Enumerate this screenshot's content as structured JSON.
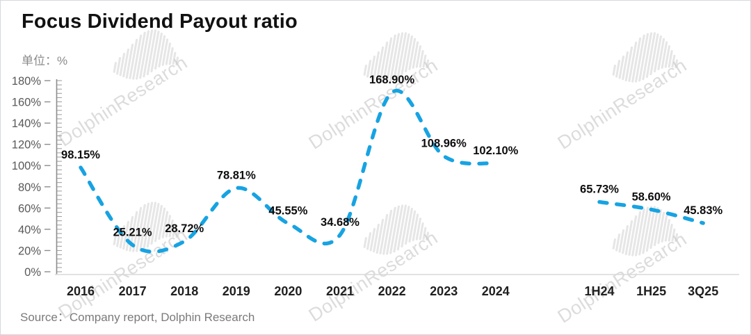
{
  "page": {
    "title": "Focus Dividend Payout ratio",
    "unit_label": "单位：%",
    "source": "Source：Company report, Dolphin Research",
    "watermark_text": "DolphinResearch"
  },
  "chart_data": {
    "type": "line",
    "title": "Focus Dividend Payout ratio",
    "unit": "%",
    "line_style": "dashed",
    "line_color": "#17A3E2",
    "grid": false,
    "legend": "none",
    "ylim": [
      0,
      180
    ],
    "ytick_step": 20,
    "ytick_labels": [
      "0%",
      "20%",
      "40%",
      "60%",
      "80%",
      "100%",
      "120%",
      "140%",
      "160%",
      "180%"
    ],
    "categories": [
      "2016",
      "2017",
      "2018",
      "2019",
      "2020",
      "2021",
      "2022",
      "2023",
      "2024",
      "1H24",
      "1H25",
      "3Q25"
    ],
    "series": [
      {
        "name": "payout-ratio-annual",
        "points": [
          {
            "category": "2016",
            "value": 98.15,
            "label": "98.15%"
          },
          {
            "category": "2017",
            "value": 25.21,
            "label": "25.21%"
          },
          {
            "category": "2018",
            "value": 28.72,
            "label": "28.72%"
          },
          {
            "category": "2019",
            "value": 78.81,
            "label": "78.81%"
          },
          {
            "category": "2020",
            "value": 45.55,
            "label": "45.55%"
          },
          {
            "category": "2021",
            "value": 34.68,
            "label": "34.68%"
          },
          {
            "category": "2022",
            "value": 168.9,
            "label": "168.90%"
          },
          {
            "category": "2023",
            "value": 108.96,
            "label": "108.96%"
          },
          {
            "category": "2024",
            "value": 102.1,
            "label": "102.10%"
          }
        ]
      },
      {
        "name": "payout-ratio-interim",
        "points": [
          {
            "category": "1H24",
            "value": 65.73,
            "label": "65.73%"
          },
          {
            "category": "1H25",
            "value": 58.6,
            "label": "58.60%"
          },
          {
            "category": "3Q25",
            "value": 45.83,
            "label": "45.83%"
          }
        ]
      }
    ]
  }
}
